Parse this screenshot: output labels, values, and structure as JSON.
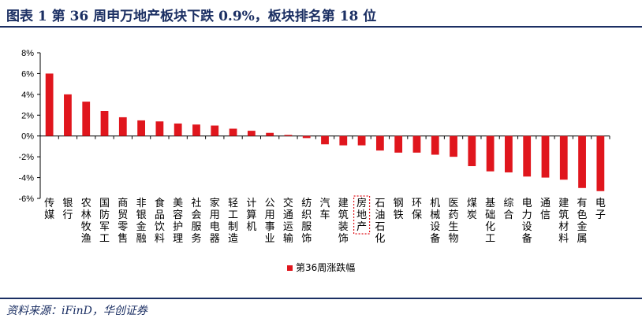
{
  "header": {
    "title": "图表 1   第 36 周申万地产板块下跌 0.9%，板块排名第 18 位"
  },
  "footer": {
    "source": "资料来源：iFinD，华创证券"
  },
  "colors": {
    "bar": "#e0161d",
    "accent": "#1b2f63",
    "highlight_box": "#e0161d"
  },
  "chart_data": {
    "type": "bar",
    "title": "",
    "xlabel": "",
    "ylabel": "",
    "ylim": [
      -6,
      8
    ],
    "yticks": [
      -6,
      -4,
      -2,
      0,
      2,
      4,
      6,
      8
    ],
    "ytick_format": "percent",
    "grid": false,
    "legend_position": "bottom-center",
    "highlight_category": "房地产",
    "categories": [
      "传媒",
      "银行",
      "农林牧渔",
      "国防军工",
      "商贸零售",
      "非银金融",
      "食品饮料",
      "美容护理",
      "社会服务",
      "家用电器",
      "轻工制造",
      "计算机",
      "公用事业",
      "交通运输",
      "纺织服饰",
      "汽车",
      "建筑装饰",
      "房地产",
      "石油石化",
      "钢铁",
      "环保",
      "机械设备",
      "医药生物",
      "煤炭",
      "基础化工",
      "综合",
      "电力设备",
      "通信",
      "建筑材料",
      "有色金属",
      "电子"
    ],
    "series": [
      {
        "name": "第36周涨跌幅",
        "values": [
          6.0,
          4.0,
          3.3,
          2.4,
          1.8,
          1.5,
          1.4,
          1.2,
          1.1,
          1.0,
          0.7,
          0.5,
          0.3,
          0.1,
          -0.2,
          -0.8,
          -0.9,
          -0.9,
          -1.4,
          -1.6,
          -1.6,
          -1.8,
          -2.0,
          -2.9,
          -3.4,
          -3.5,
          -3.9,
          -4.0,
          -4.2,
          -5.0,
          -5.3
        ]
      }
    ]
  }
}
